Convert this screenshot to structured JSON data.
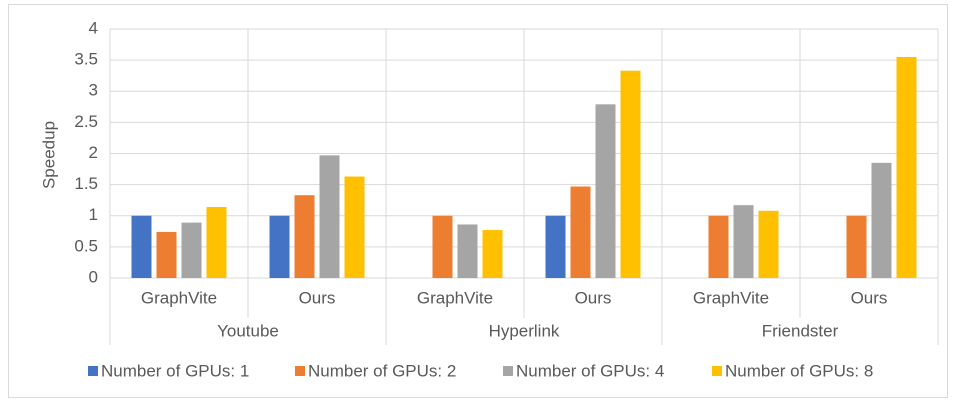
{
  "chart_data": {
    "type": "bar",
    "y_label": "Speedup",
    "categories": [
      "GraphVite",
      "Ours",
      "GraphVite",
      "Ours",
      "GraphVite",
      "Ours"
    ],
    "groups": [
      "Youtube",
      "Hyperlink",
      "Friendster"
    ],
    "series": [
      {
        "name": "Number of GPUs: 1",
        "color": "#4472c4",
        "values": [
          1.0,
          1.0,
          null,
          1.0,
          null,
          null
        ]
      },
      {
        "name": "Number of GPUs: 2",
        "color": "#ed7d31",
        "values": [
          0.74,
          1.33,
          1.0,
          1.47,
          1.0,
          1.0
        ]
      },
      {
        "name": "Number of GPUs: 4",
        "color": "#a5a5a5",
        "values": [
          0.89,
          1.97,
          0.86,
          2.79,
          1.17,
          1.85
        ]
      },
      {
        "name": "Number of GPUs: 8",
        "color": "#ffc000",
        "values": [
          1.14,
          1.63,
          0.77,
          3.33,
          1.08,
          3.55
        ]
      }
    ],
    "ylim": [
      0,
      4
    ],
    "yticks": [
      0,
      0.5,
      1,
      1.5,
      2,
      2.5,
      3,
      3.5,
      4
    ],
    "grid": true,
    "legend": "bottom"
  }
}
